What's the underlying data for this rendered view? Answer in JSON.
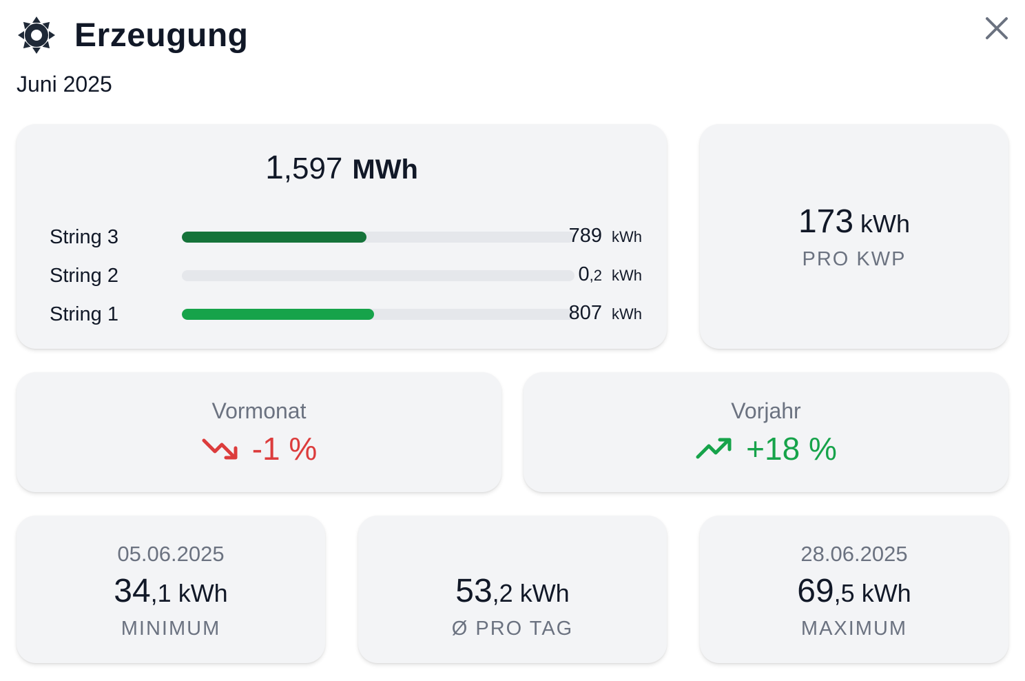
{
  "header": {
    "title": "Erzeugung",
    "period": "Juni 2025",
    "icon": "sun-icon",
    "close_icon": "close-icon"
  },
  "total": {
    "integer": "1",
    "decimals": ",597",
    "unit": "MWh"
  },
  "strings": [
    {
      "label": "String 3",
      "value_int": "789",
      "value_dec": "",
      "unit": "kWh",
      "fraction": 0.47,
      "color": "#15733a"
    },
    {
      "label": "String 2",
      "value_int": "0",
      "value_dec": ",2",
      "unit": "kWh",
      "fraction": 0.0,
      "color": "#16a34a"
    },
    {
      "label": "String 1",
      "value_int": "807",
      "value_dec": "",
      "unit": "kWh",
      "fraction": 0.49,
      "color": "#16a34a"
    }
  ],
  "per_kwp": {
    "value": "173",
    "unit": "kWh",
    "caption": "PRO KWP"
  },
  "comparison": {
    "prev_month": {
      "title": "Vormonat",
      "value": "-1 %",
      "direction": "down",
      "color": "#dc3c3c",
      "icon": "trending-down-icon"
    },
    "prev_year": {
      "title": "Vorjahr",
      "value": "+18 %",
      "direction": "up",
      "color": "#16a34a",
      "icon": "trending-up-icon"
    }
  },
  "stats": {
    "minimum": {
      "date": "05.06.2025",
      "int": "34",
      "dec": ",1",
      "unit": "kWh",
      "caption": "MINIMUM"
    },
    "average": {
      "int": "53",
      "dec": ",2",
      "unit": "kWh",
      "caption": "Ø PRO TAG"
    },
    "maximum": {
      "date": "28.06.2025",
      "int": "69",
      "dec": ",5",
      "unit": "kWh",
      "caption": "MAXIMUM"
    }
  }
}
